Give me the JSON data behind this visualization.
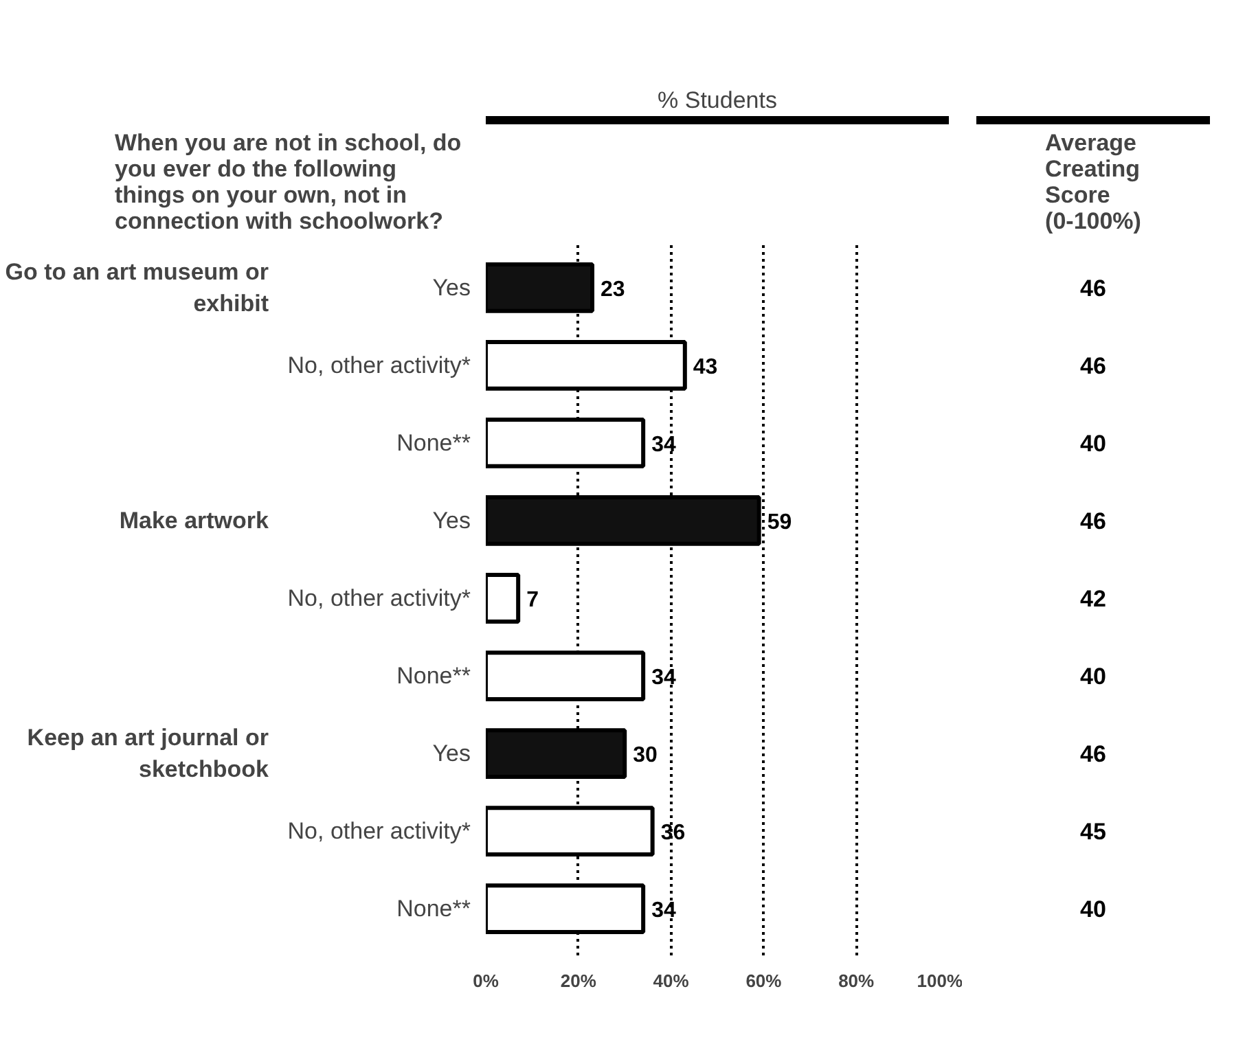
{
  "chart_data": [
    {
      "type": "bar",
      "orientation": "horizontal",
      "title": "When you are not in school, do you ever do the following things on your own, not in connection with schoolwork?",
      "xlabel": "% Students",
      "categories": [
        "Yes",
        "No, other activity*",
        "None**",
        "Yes",
        "No, other activity*",
        "None**",
        "Yes",
        "No, other activity*",
        "None**"
      ],
      "values": [
        23,
        43,
        34,
        59,
        7,
        34,
        30,
        36,
        34
      ],
      "colors": [
        "#111111",
        "#ffffff",
        "#ffffff",
        "#111111",
        "#ffffff",
        "#ffffff",
        "#111111",
        "#ffffff",
        "#ffffff"
      ],
      "xlim": [
        0,
        100
      ],
      "xticks": [
        {
          "value": 0,
          "label": "0%"
        },
        {
          "value": 20,
          "label": "20%"
        },
        {
          "value": 40,
          "label": "40%"
        },
        {
          "value": 60,
          "label": "60%"
        },
        {
          "value": 80,
          "label": "80%"
        },
        {
          "value": 100,
          "label": "100%"
        }
      ],
      "grid": "x",
      "data_labels": true,
      "annotations": [
        "Go to an art museum or exhibit",
        "Make artwork",
        "Keep an art journal or sketchbook"
      ]
    },
    {
      "type": "other",
      "title": "Average Creating Score (0-100%)",
      "categories": [
        null,
        null,
        null,
        null,
        null,
        null,
        null,
        null,
        null
      ],
      "values": [
        46,
        46,
        40,
        46,
        42,
        40,
        46,
        45,
        40
      ],
      "data_labels": true
    }
  ]
}
